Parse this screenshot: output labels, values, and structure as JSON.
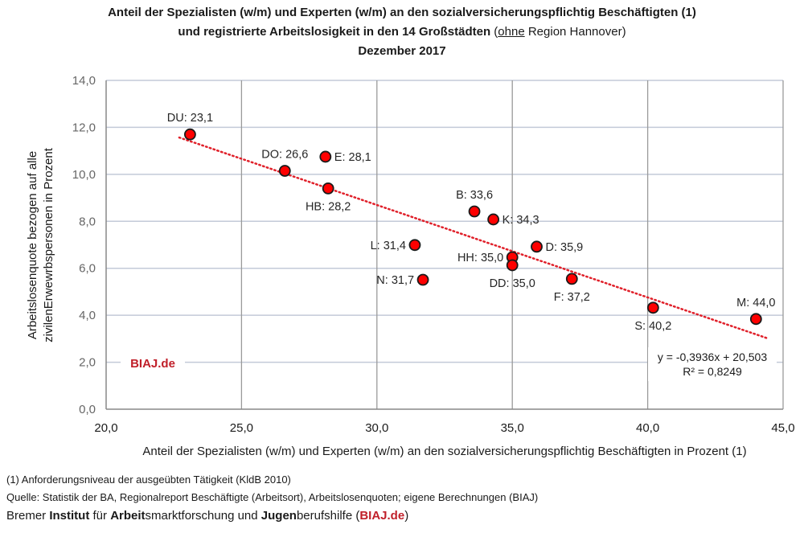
{
  "title": {
    "line1": "Anteil der Spezialisten (w/m) und Experten (w/m) an den sozialversicherungspflichtig Beschäftigten (1)",
    "line2_bold": "und registrierte Arbeitslosigkeit in den 14 Großstädten",
    "line2_paren_open": "(",
    "line2_underlined": "ohne",
    "line2_rest": " Region Hannover)",
    "line3": "Dezember 2017"
  },
  "chart_data": {
    "type": "scatter",
    "title": "Anteil der Spezialisten (w/m) und Experten (w/m) an den sozialversicherungspflichtig Beschäftigten (1) und registrierte Arbeitslosigkeit in den 14 Großstädten (ohne Region Hannover) Dezember 2017",
    "xlabel": "Anteil der Spezialisten (w/m) und Experten (w/m) an den sozialversicherungspflichtig Beschäftigten in Prozent (1)",
    "ylabel_line1": "Arbeitslosenquote bezogen auf alle",
    "ylabel_line2": "zivilenErwewrbspersonen in Prozent",
    "xlim": [
      20,
      45
    ],
    "ylim": [
      0,
      14
    ],
    "xticks": [
      20,
      25,
      30,
      35,
      40,
      45
    ],
    "xtick_labels": [
      "20,0",
      "25,0",
      "30,0",
      "35,0",
      "40,0",
      "45,0"
    ],
    "yticks": [
      0,
      2,
      4,
      6,
      8,
      10,
      12,
      14
    ],
    "ytick_labels": [
      "0,0",
      "2,0",
      "4,0",
      "6,0",
      "8,0",
      "10,0",
      "12,0",
      "14,0"
    ],
    "grid": true,
    "points": [
      {
        "label": "DU: 23,1",
        "x": 23.1,
        "y": 11.7,
        "label_pos": "top"
      },
      {
        "label": "DO: 26,6",
        "x": 26.6,
        "y": 10.15,
        "label_pos": "top"
      },
      {
        "label": "E: 28,1",
        "x": 28.1,
        "y": 10.75,
        "label_pos": "right"
      },
      {
        "label": "HB: 28,2",
        "x": 28.2,
        "y": 9.4,
        "label_pos": "bottom"
      },
      {
        "label": "B: 33,6",
        "x": 33.6,
        "y": 8.42,
        "label_pos": "top"
      },
      {
        "label": "K: 34,3",
        "x": 34.3,
        "y": 8.08,
        "label_pos": "right"
      },
      {
        "label": "L: 31,4",
        "x": 31.4,
        "y": 6.99,
        "label_pos": "left"
      },
      {
        "label": "D: 35,9",
        "x": 35.9,
        "y": 6.92,
        "label_pos": "right"
      },
      {
        "label": "HH: 35,0",
        "x": 35.0,
        "y": 6.47,
        "label_pos": "left"
      },
      {
        "label": "DD: 35,0",
        "x": 35.0,
        "y": 6.13,
        "label_pos": "bottom"
      },
      {
        "label": "N: 31,7",
        "x": 31.7,
        "y": 5.51,
        "label_pos": "left"
      },
      {
        "label": "F: 37,2",
        "x": 37.2,
        "y": 5.55,
        "label_pos": "bottom"
      },
      {
        "label": "S: 40,2",
        "x": 40.2,
        "y": 4.32,
        "label_pos": "bottom"
      },
      {
        "label": "M: 44,0",
        "x": 44.0,
        "y": 3.84,
        "label_pos": "top"
      }
    ],
    "trendline": {
      "type": "linear",
      "slope": -0.3936,
      "intercept": 20.503,
      "x_range": [
        22.7,
        44.4
      ],
      "equation_label": "y = -0,3936x + 20,503",
      "r2_label": "R² = 0,8249"
    },
    "watermark": "BIAJ.de",
    "marker_color": "#ff0000",
    "trend_color": "#e0202a",
    "brand_color": "#c0202a"
  },
  "notes": {
    "footnote": "(1) Anforderungsniveau der ausgeübten Tätigkeit (KldB 2010)",
    "source": "Quelle: Statistik der BA, Regionalreport Beschäftigte (Arbeitsort), Arbeitslosenquoten; eigene Berechnungen (BIAJ)",
    "inst_parts": [
      {
        "text": "Bremer ",
        "style": "normal"
      },
      {
        "text": "Institut",
        "style": "bold"
      },
      {
        "text": " für ",
        "style": "normal"
      },
      {
        "text": "Arbeit",
        "style": "bold"
      },
      {
        "text": "smarktforschung und ",
        "style": "normal"
      },
      {
        "text": "Jugen",
        "style": "bold"
      },
      {
        "text": "berufshilfe (",
        "style": "normal"
      },
      {
        "text": "BIAJ.de",
        "style": "red"
      },
      {
        "text": ")",
        "style": "normal"
      }
    ]
  }
}
